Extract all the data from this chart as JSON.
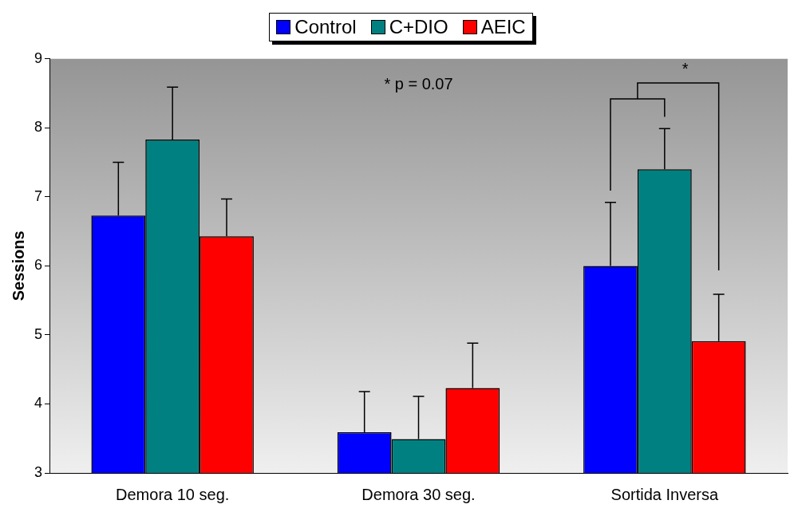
{
  "chart_data": {
    "type": "bar",
    "ylabel": "Sessions",
    "categories": [
      "Demora 10 seg.",
      "Demora 30 seg.",
      "Sortida Inversa"
    ],
    "series": [
      {
        "name": "Control",
        "color": "#0000ff",
        "values": [
          6.73,
          3.59,
          6.0
        ],
        "errors": [
          [
            6.73,
            7.5
          ],
          [
            3.59,
            4.18
          ],
          [
            6.0,
            6.92
          ]
        ]
      },
      {
        "name": "C+DIO",
        "color": "#008080",
        "values": [
          7.83,
          3.49,
          7.4
        ],
        "errors": [
          [
            7.83,
            8.59
          ],
          [
            3.49,
            4.11
          ],
          [
            7.4,
            7.99
          ]
        ]
      },
      {
        "name": "AEIC",
        "color": "#ff0000",
        "values": [
          6.43,
          4.23,
          4.91
        ],
        "errors": [
          [
            6.43,
            6.97
          ],
          [
            4.23,
            4.88
          ],
          [
            4.91,
            5.59
          ]
        ]
      }
    ],
    "ylim": [
      3,
      9
    ],
    "yticks": [
      3,
      4,
      5,
      6,
      7,
      8,
      9
    ],
    "grid": false,
    "legend": "top",
    "annotations": [
      "* p = 0.07",
      "*"
    ]
  }
}
